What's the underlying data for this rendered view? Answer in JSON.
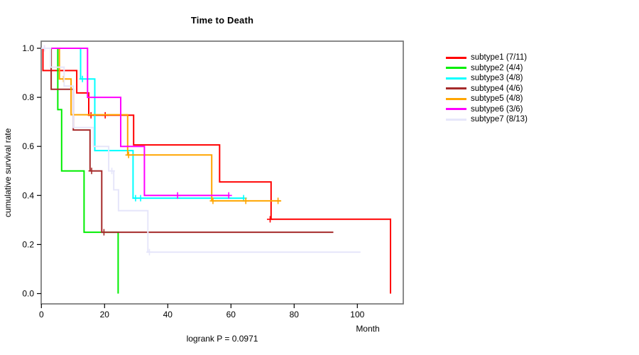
{
  "header": {
    "title": "Time to Death"
  },
  "axes": {
    "x_label": "Month",
    "y_label": "cumulative survival rate",
    "x_tick_labels": [
      "0",
      "20",
      "40",
      "60",
      "80",
      "100"
    ],
    "y_tick_labels": [
      "0.0",
      "0.2",
      "0.4",
      "0.6",
      "0.8",
      "1.0"
    ]
  },
  "footer": {
    "annotation": "logrank P = 0.0971"
  },
  "legend": {
    "position": "right",
    "items": [
      {
        "label": "subtype1 (7/11)",
        "color": "#ff0000"
      },
      {
        "label": "subtype2 (4/4)",
        "color": "#00ee00"
      },
      {
        "label": "subtype3 (4/8)",
        "color": "#00ffff"
      },
      {
        "label": "subtype4 (4/6)",
        "color": "#a52a2a"
      },
      {
        "label": "subtype5 (4/8)",
        "color": "#ffa500"
      },
      {
        "label": "subtype6 (3/6)",
        "color": "#ff00ff"
      },
      {
        "label": "subtype7 (8/13)",
        "color": "#e6e6fa"
      }
    ]
  },
  "chart_data": {
    "type": "line",
    "subtype": "kaplan-meier-step",
    "title": "Time to Death",
    "xlabel": "Month",
    "ylabel": "cumulative survival rate",
    "annotation": "logrank P = 0.0971",
    "grid": false,
    "legend_position": "right",
    "x_ticks": [
      0,
      20,
      40,
      60,
      80,
      100
    ],
    "y_ticks": [
      0.0,
      0.2,
      0.4,
      0.6,
      0.8,
      1.0
    ],
    "xlim": [
      0,
      114.5
    ],
    "ylim": [
      -0.04,
      1.03
    ],
    "series": [
      {
        "name": "subtype1 (7/11)",
        "color": "#ff0000",
        "steps": [
          [
            0,
            1.0
          ],
          [
            0.5,
            0.909
          ],
          [
            11.2,
            0.818
          ],
          [
            15.0,
            0.727
          ],
          [
            29.2,
            0.606
          ],
          [
            56.4,
            0.455
          ],
          [
            72.7,
            0.303
          ],
          [
            110.5,
            0.0
          ]
        ],
        "end": 110.5,
        "censors": [
          [
            15.7,
            0.727
          ],
          [
            20.2,
            0.727
          ],
          [
            72.4,
            0.303
          ]
        ]
      },
      {
        "name": "subtype2 (4/4)",
        "color": "#00ee00",
        "steps": [
          [
            0,
            1.0
          ],
          [
            5.2,
            0.75
          ],
          [
            6.4,
            0.5
          ],
          [
            13.5,
            0.25
          ],
          [
            24.3,
            0.0
          ]
        ],
        "end": 24.3,
        "censors": []
      },
      {
        "name": "subtype3 (4/8)",
        "color": "#00ffff",
        "steps": [
          [
            0,
            1.0
          ],
          [
            12.4,
            0.875
          ],
          [
            16.9,
            0.583
          ],
          [
            29.0,
            0.389
          ]
        ],
        "end": 64.2,
        "censors": [
          [
            13.0,
            0.875
          ],
          [
            29.8,
            0.389
          ],
          [
            31.4,
            0.389
          ],
          [
            64.0,
            0.389
          ]
        ]
      },
      {
        "name": "subtype4 (4/6)",
        "color": "#a52a2a",
        "steps": [
          [
            0,
            1.0
          ],
          [
            3.1,
            0.833
          ],
          [
            10.1,
            0.667
          ],
          [
            15.4,
            0.5
          ],
          [
            19.1,
            0.25
          ]
        ],
        "end": 92.4,
        "censors": [
          [
            15.9,
            0.5
          ],
          [
            19.8,
            0.25
          ]
        ]
      },
      {
        "name": "subtype5 (4/8)",
        "color": "#ffa500",
        "steps": [
          [
            0,
            1.0
          ],
          [
            5.7,
            0.875
          ],
          [
            9.4,
            0.729
          ],
          [
            27.3,
            0.565
          ],
          [
            53.9,
            0.378
          ]
        ],
        "end": 75.7,
        "censors": [
          [
            7.0,
            0.875
          ],
          [
            27.6,
            0.565
          ],
          [
            54.3,
            0.378
          ],
          [
            64.7,
            0.378
          ],
          [
            74.9,
            0.378
          ]
        ]
      },
      {
        "name": "subtype6 (3/6)",
        "color": "#ff00ff",
        "steps": [
          [
            0,
            1.0
          ],
          [
            14.6,
            0.8
          ],
          [
            25.1,
            0.6
          ],
          [
            32.6,
            0.4
          ]
        ],
        "end": 59.6,
        "censors": [
          [
            0.9,
            1.0
          ],
          [
            43.1,
            0.4
          ],
          [
            59.3,
            0.4
          ]
        ]
      },
      {
        "name": "subtype7 (8/13)",
        "color": "#e6e6fa",
        "steps": [
          [
            0,
            1.0
          ],
          [
            2.9,
            0.923
          ],
          [
            7.2,
            0.846
          ],
          [
            10.1,
            0.677
          ],
          [
            16.5,
            0.6
          ],
          [
            21.3,
            0.5
          ],
          [
            22.9,
            0.423
          ],
          [
            24.4,
            0.338
          ],
          [
            33.7,
            0.169
          ]
        ],
        "end": 101.0,
        "censors": [
          [
            0.9,
            1.0
          ],
          [
            22.3,
            0.5
          ],
          [
            34.2,
            0.169
          ]
        ]
      }
    ]
  }
}
